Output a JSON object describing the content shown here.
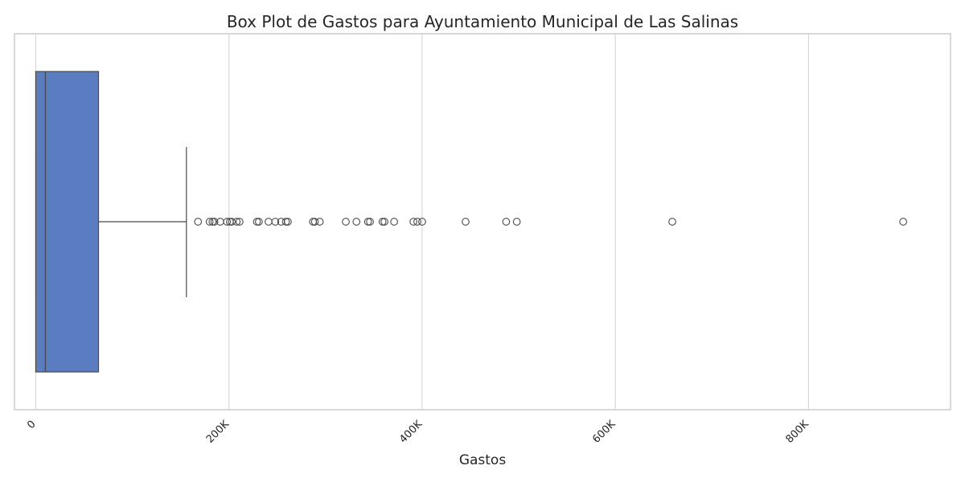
{
  "chart_data": {
    "type": "box",
    "title": "Box Plot de Gastos para Ayuntamiento Municipal de Las Salinas",
    "xlabel": "Gastos",
    "ylabel": "",
    "orientation": "horizontal",
    "xlim": [
      -22000,
      947000
    ],
    "grid": true,
    "box_color": "#5a7dc2",
    "line_color": "#4a4a4a",
    "ticks": [
      {
        "value": 0,
        "label": "0"
      },
      {
        "value": 200000,
        "label": "200K"
      },
      {
        "value": 400000,
        "label": "400K"
      },
      {
        "value": 600000,
        "label": "600K"
      },
      {
        "value": 800000,
        "label": "800K"
      }
    ],
    "box": {
      "whisker_low": 0,
      "q1": 0,
      "median": 10000,
      "q3": 65000,
      "whisker_high": 156000
    },
    "outliers": [
      168000,
      180000,
      183000,
      185000,
      191000,
      198000,
      201000,
      203000,
      208000,
      211000,
      229000,
      231000,
      241000,
      248000,
      254000,
      259000,
      261000,
      287000,
      289000,
      294000,
      321000,
      332000,
      344000,
      346000,
      359000,
      361000,
      371000,
      391000,
      395000,
      400000,
      445000,
      487000,
      498000,
      659000,
      898000
    ]
  }
}
